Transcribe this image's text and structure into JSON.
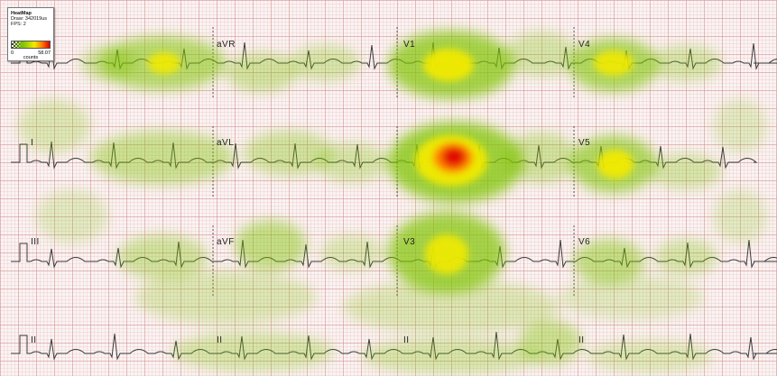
{
  "legend": {
    "title": "HeatMap",
    "draw": "Draw: 342019us",
    "fps": "FPS: 2",
    "min": "0",
    "max": "58.07",
    "unit": "counts",
    "colors": [
      "#7fc400",
      "#f1ea00",
      "#ff7b00",
      "#e00000"
    ]
  },
  "leads": {
    "aVR": "aVR",
    "V1": "V1",
    "V4": "V4",
    "I": "I",
    "aVL": "aVL",
    "V5": "V5",
    "III": "III",
    "aVF": "aVF",
    "V3": "V3",
    "V6": "V6",
    "II_a": "II",
    "II_b": "II",
    "II_c": "II",
    "II_d": "II"
  },
  "heatmap_intensity_scale": {
    "min": 0,
    "max": 58.07
  },
  "colors": {
    "trace": "#3a3a3a",
    "grid_major": "#d69696",
    "grid_minor": "#e8c4c4",
    "paper": "#fbf3f3"
  }
}
